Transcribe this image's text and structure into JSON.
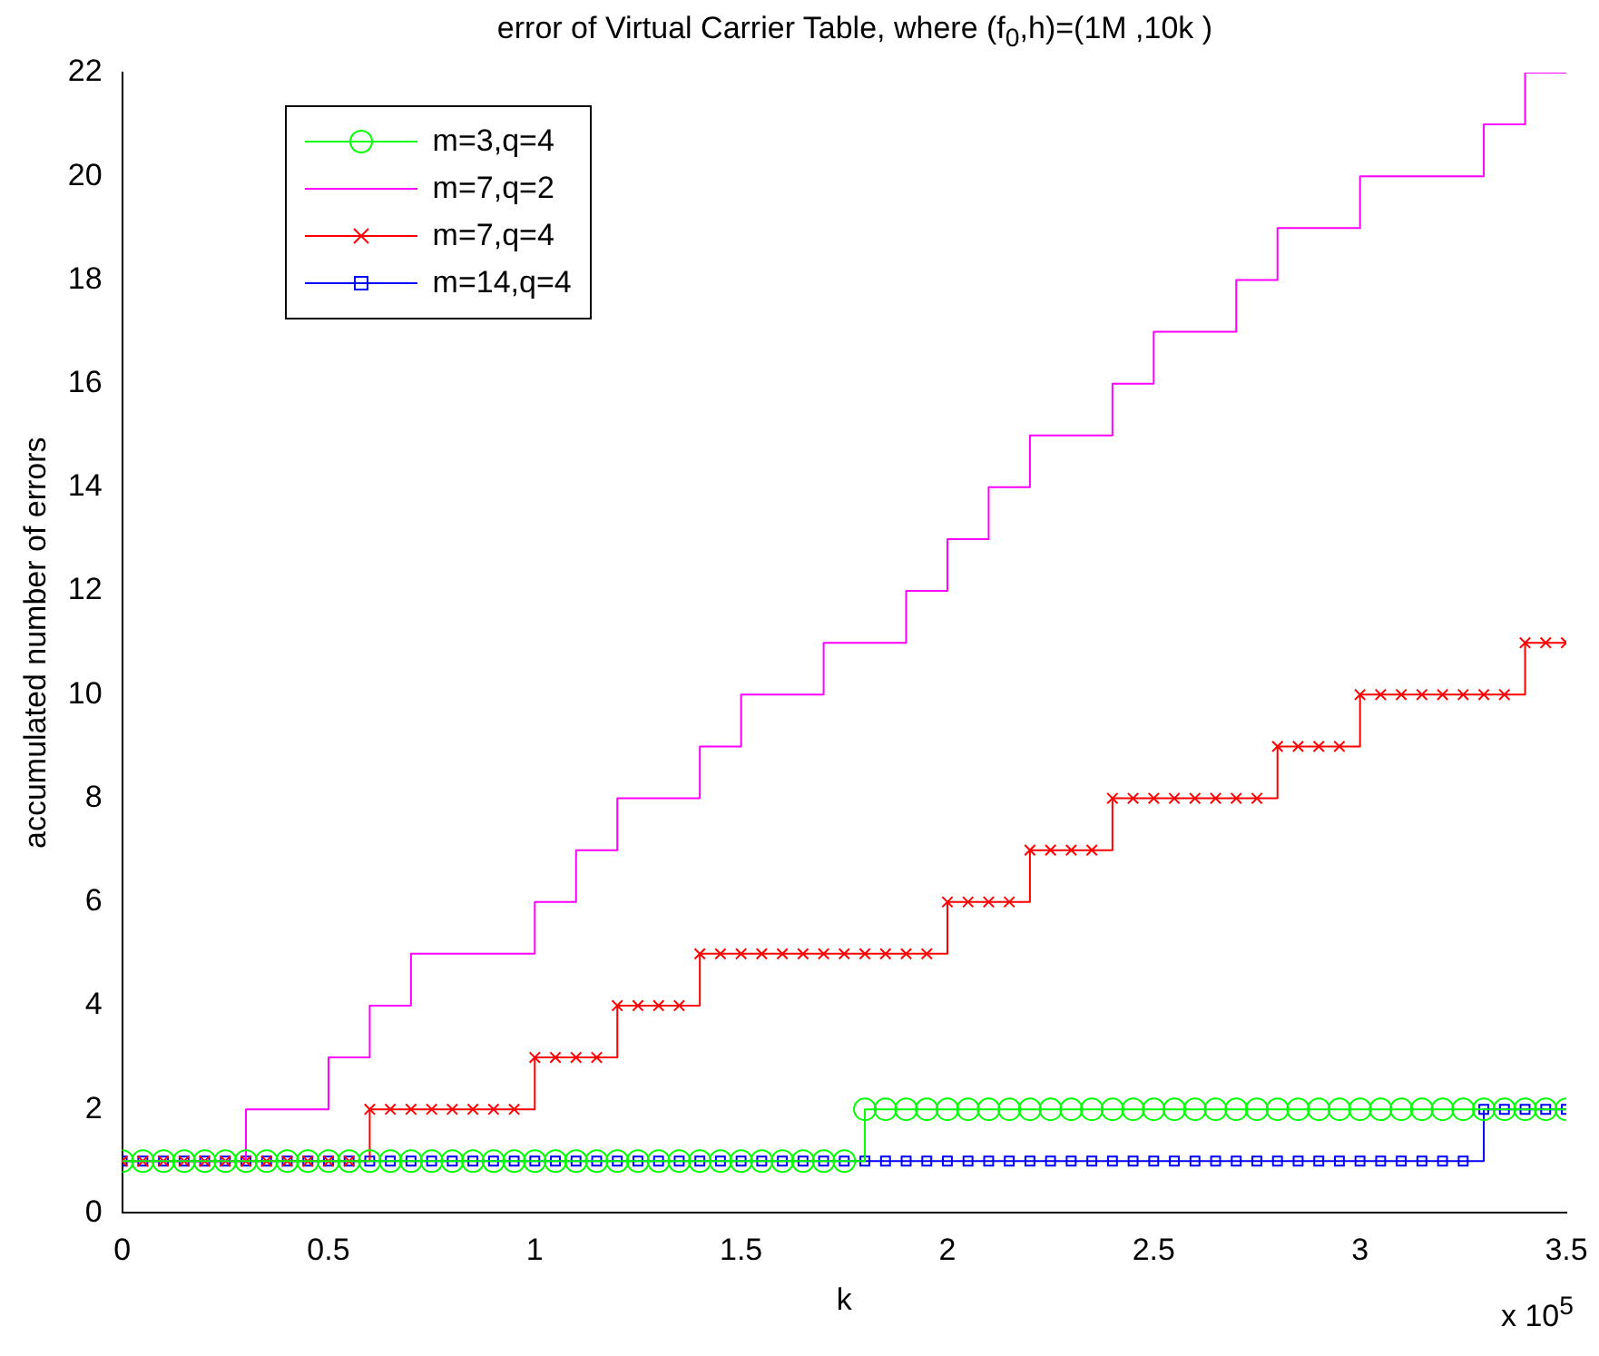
{
  "chart_data": {
    "type": "step",
    "title": "error of Virtual Carrier Table, where (f$_{0}$,h)=(1M ,10k )",
    "xlabel": "k",
    "ylabel": "accumulated number of errors",
    "annotations": [
      "x 10$^{5}$"
    ],
    "x": [
      0,
      0.05,
      0.1,
      0.15,
      0.2,
      0.25,
      0.3,
      0.35,
      0.4,
      0.45,
      0.5,
      0.55,
      0.6,
      0.65,
      0.7,
      0.75,
      0.8,
      0.85,
      0.9,
      0.95,
      1,
      1.05,
      1.1,
      1.15,
      1.2,
      1.25,
      1.3,
      1.35,
      1.4,
      1.45,
      1.5,
      1.55,
      1.6,
      1.65,
      1.7,
      1.75,
      1.8,
      1.85,
      1.9,
      1.95,
      2,
      2.05,
      2.1,
      2.15,
      2.2,
      2.25,
      2.3,
      2.35,
      2.4,
      2.45,
      2.5,
      2.55,
      2.6,
      2.65,
      2.7,
      2.75,
      2.8,
      2.85,
      2.9,
      2.95,
      3,
      3.05,
      3.1,
      3.15,
      3.2,
      3.25,
      3.3,
      3.35,
      3.4,
      3.45,
      3.5
    ],
    "series": [
      {
        "name": "m=3,q=4",
        "color": "#00ff00",
        "marker": "circle",
        "values": [
          1,
          1,
          1,
          1,
          1,
          1,
          1,
          1,
          1,
          1,
          1,
          1,
          1,
          1,
          1,
          1,
          1,
          1,
          1,
          1,
          1,
          1,
          1,
          1,
          1,
          1,
          1,
          1,
          1,
          1,
          1,
          1,
          1,
          1,
          1,
          1,
          2,
          2,
          2,
          2,
          2,
          2,
          2,
          2,
          2,
          2,
          2,
          2,
          2,
          2,
          2,
          2,
          2,
          2,
          2,
          2,
          2,
          2,
          2,
          2,
          2,
          2,
          2,
          2,
          2,
          2,
          2,
          2,
          2,
          2,
          2
        ]
      },
      {
        "name": "m=7,q=2",
        "color": "#ff00ff",
        "marker": "none",
        "x": [
          0,
          0.3,
          0.5,
          0.6,
          0.7,
          1,
          1.1,
          1.2,
          1.4,
          1.5,
          1.7,
          1.9,
          2,
          2.1,
          2.2,
          2.4,
          2.5,
          2.7,
          2.8,
          3,
          3.3,
          3.4,
          3.5
        ],
        "values": [
          1,
          2,
          3,
          4,
          5,
          6,
          7,
          8,
          9,
          10,
          11,
          12,
          13,
          14,
          15,
          16,
          17,
          18,
          19,
          20,
          21,
          22,
          22
        ]
      },
      {
        "name": "m=7,q=4",
        "color": "#ff0000",
        "marker": "cross",
        "values": [
          1,
          1,
          1,
          1,
          1,
          1,
          1,
          1,
          1,
          1,
          1,
          1,
          2,
          2,
          2,
          2,
          2,
          2,
          2,
          2,
          3,
          3,
          3,
          3,
          4,
          4,
          4,
          4,
          5,
          5,
          5,
          5,
          5,
          5,
          5,
          5,
          5,
          5,
          5,
          5,
          6,
          6,
          6,
          6,
          7,
          7,
          7,
          7,
          8,
          8,
          8,
          8,
          8,
          8,
          8,
          8,
          9,
          9,
          9,
          9,
          10,
          10,
          10,
          10,
          10,
          10,
          10,
          10,
          11,
          11,
          11
        ]
      },
      {
        "name": "m=14,q=4",
        "color": "#0000ff",
        "marker": "square",
        "values": [
          1,
          1,
          1,
          1,
          1,
          1,
          1,
          1,
          1,
          1,
          1,
          1,
          1,
          1,
          1,
          1,
          1,
          1,
          1,
          1,
          1,
          1,
          1,
          1,
          1,
          1,
          1,
          1,
          1,
          1,
          1,
          1,
          1,
          1,
          1,
          1,
          1,
          1,
          1,
          1,
          1,
          1,
          1,
          1,
          1,
          1,
          1,
          1,
          1,
          1,
          1,
          1,
          1,
          1,
          1,
          1,
          1,
          1,
          1,
          1,
          1,
          1,
          1,
          1,
          1,
          1,
          2,
          2,
          2,
          2,
          2
        ]
      }
    ],
    "xlim": [
      0,
      3.5
    ],
    "xticks": [
      0,
      0.5,
      1,
      1.5,
      2,
      2.5,
      3,
      3.5
    ],
    "ylim": [
      0,
      22
    ],
    "yticks": [
      0,
      2,
      4,
      6,
      8,
      10,
      12,
      14,
      16,
      18,
      20,
      22
    ],
    "grid": false,
    "legend": "top left"
  }
}
